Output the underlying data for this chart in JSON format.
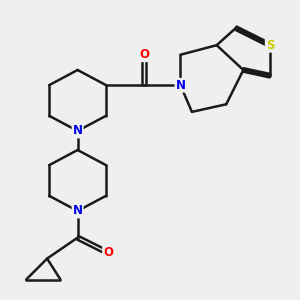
{
  "bg_color": "#efefef",
  "bond_color": "#1a1a1a",
  "bond_width": 1.8,
  "atom_colors": {
    "N": "#0000ee",
    "O": "#ff0000",
    "S": "#cccc00",
    "C": "#1a1a1a"
  },
  "figsize": [
    3.0,
    3.0
  ],
  "dpi": 100
}
